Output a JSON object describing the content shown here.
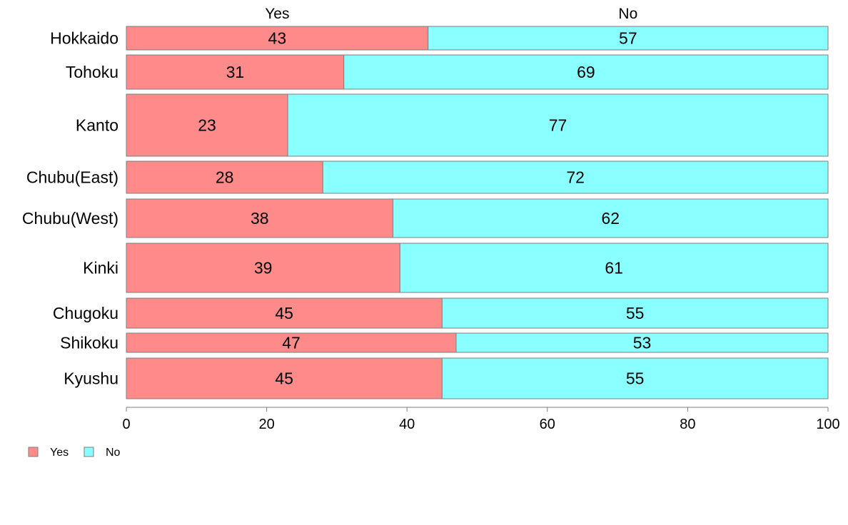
{
  "chart_data": {
    "type": "bar",
    "orientation": "horizontal",
    "stacked": "percent",
    "categories": [
      "Hokkaido",
      "Tohoku",
      "Kanto",
      "Chubu(East)",
      "Chubu(West)",
      "Kinki",
      "Chugoku",
      "Shikoku",
      "Kyushu"
    ],
    "series": [
      {
        "name": "Yes",
        "color": "#ff8a8a",
        "values": [
          43,
          31,
          23,
          28,
          38,
          39,
          45,
          47,
          45
        ]
      },
      {
        "name": "No",
        "color": "#8affff",
        "values": [
          57,
          69,
          77,
          72,
          62,
          61,
          55,
          53,
          55
        ]
      }
    ],
    "xlim": [
      0,
      100
    ],
    "x_ticks": [
      "0",
      "20",
      "40",
      "60",
      "80",
      "100"
    ],
    "legend_position": "bottom-left",
    "grid": false
  }
}
